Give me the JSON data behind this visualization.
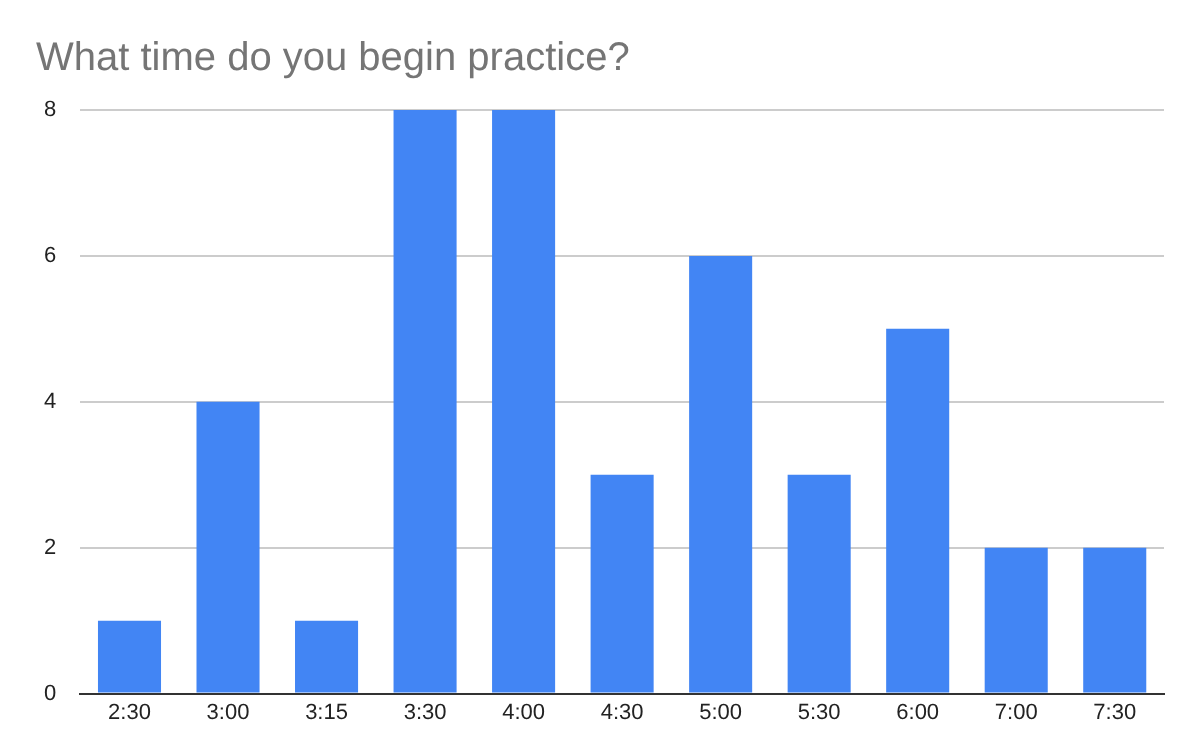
{
  "chart_data": {
    "type": "bar",
    "title": "What time do you begin practice?",
    "categories": [
      "2:30",
      "3:00",
      "3:15",
      "3:30",
      "4:00",
      "4:30",
      "5:00",
      "5:30",
      "6:00",
      "7:00",
      "7:30"
    ],
    "values": [
      1,
      4,
      1,
      8,
      8,
      3,
      6,
      3,
      5,
      2,
      2
    ],
    "color": "#4285f4",
    "ylim": [
      0,
      8
    ],
    "yticks": [
      0,
      2,
      4,
      6,
      8
    ],
    "grid": "y"
  }
}
